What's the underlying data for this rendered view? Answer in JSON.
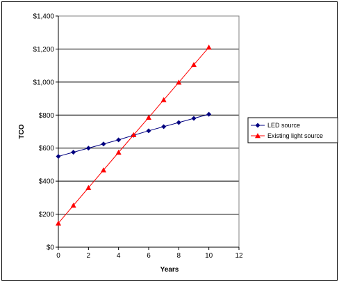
{
  "chart_data": {
    "type": "line",
    "title": "",
    "xlabel": "Years",
    "ylabel": "TCO",
    "xlim": [
      0,
      12
    ],
    "ylim": [
      0,
      1400
    ],
    "x_ticks": [
      0,
      2,
      4,
      6,
      8,
      10,
      12
    ],
    "x_tick_labels": [
      "0",
      "2",
      "4",
      "6",
      "8",
      "10",
      "12"
    ],
    "y_ticks": [
      0,
      200,
      400,
      600,
      800,
      1000,
      1200,
      1400
    ],
    "y_tick_labels": [
      "$0",
      "$200",
      "$400",
      "$600",
      "$800",
      "$1,000",
      "$1,200",
      "$1,400"
    ],
    "grid": "horizontal",
    "legend_position": "right",
    "series": [
      {
        "name": "LED source",
        "color": "#000080",
        "marker": "diamond",
        "x": [
          0,
          1,
          2,
          3,
          4,
          5,
          6,
          7,
          8,
          9,
          10
        ],
        "y": [
          550,
          575,
          600,
          625,
          650,
          678,
          705,
          730,
          755,
          780,
          805
        ]
      },
      {
        "name": "Existing light source",
        "color": "#ff0000",
        "marker": "triangle",
        "x": [
          0,
          1,
          2,
          3,
          4,
          5,
          6,
          7,
          8,
          9,
          10
        ],
        "y": [
          145,
          253,
          360,
          467,
          574,
          680,
          785,
          892,
          998,
          1105,
          1210
        ]
      }
    ]
  }
}
